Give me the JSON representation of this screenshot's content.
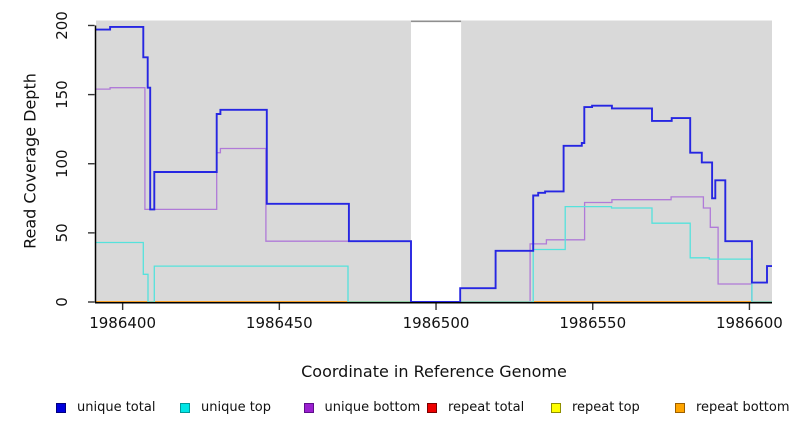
{
  "figure": {
    "panel_bg": "#d9d9d9",
    "axis_color": "#000000",
    "tick_color": "#333333",
    "text_color": "#111111",
    "gap_region": {
      "x_start": 1986492,
      "x_end": 1986508,
      "color": "#ffffff",
      "top_border_color": "#8f8f8f"
    }
  },
  "chart_data": {
    "type": "line",
    "subtype": "step-after-coverage",
    "title": "",
    "xlabel": "Coordinate in Reference Genome",
    "ylabel": "Read Coverage Depth",
    "xlim": [
      1986391.5,
      1986607.2
    ],
    "ylim": [
      0,
      203.6
    ],
    "grid": false,
    "legend_position": "bottom",
    "x_ticks": [
      1986400,
      1986450,
      1986500,
      1986550,
      1986600
    ],
    "x_tick_labels": [
      "1986400",
      "1986450",
      "1986500",
      "1986550",
      "1986600"
    ],
    "y_ticks": [
      0,
      50,
      100,
      150,
      200
    ],
    "y_tick_labels": [
      "0",
      "50",
      "100",
      "150",
      "200"
    ],
    "draw_order": [
      3,
      4,
      5,
      2,
      1,
      0
    ],
    "series": [
      {
        "name": "unique total",
        "color": "#2626e2",
        "legend_color": "#0000dd",
        "legend_border": "#000080",
        "line_width": 1.9,
        "segments": [
          [
            [
              1986391.5,
              197
            ],
            [
              1986396,
              199
            ],
            [
              1986406.6,
              177
            ],
            [
              1986408,
              155
            ],
            [
              1986408.8,
              67
            ],
            [
              1986410.1,
              94
            ],
            [
              1986430,
              136
            ],
            [
              1986431.2,
              139
            ],
            [
              1986446,
              71
            ],
            [
              1986472.2,
              44
            ],
            [
              1986492,
              0
            ],
            [
              1986507.7,
              10
            ],
            [
              1986519,
              37
            ],
            [
              1986531,
              77
            ],
            [
              1986532.6,
              79
            ],
            [
              1986534.8,
              80
            ],
            [
              1986540.7,
              113
            ],
            [
              1986546.5,
              115
            ],
            [
              1986547.3,
              141
            ],
            [
              1986549.8,
              142
            ],
            [
              1986556.1,
              140
            ],
            [
              1986568.9,
              131
            ],
            [
              1986575.2,
              133
            ],
            [
              1986581.1,
              108
            ],
            [
              1986584.8,
              101
            ],
            [
              1986588.1,
              75
            ],
            [
              1986589.1,
              88
            ],
            [
              1986592.3,
              44
            ],
            [
              1986600.8,
              14
            ],
            [
              1986605.6,
              26
            ],
            [
              1986607.2,
              26
            ]
          ]
        ]
      },
      {
        "name": "unique top",
        "color": "#55e2dc",
        "legend_color": "#00e5e5",
        "legend_border": "#009999",
        "line_width": 1.3,
        "segments": [
          [
            [
              1986391.5,
              43
            ],
            [
              1986406.6,
              20
            ],
            [
              1986408.1,
              0
            ],
            [
              1986410.1,
              26
            ],
            [
              1986471.9,
              0
            ],
            [
              1986531,
              38
            ],
            [
              1986541.2,
              69
            ],
            [
              1986556,
              68
            ],
            [
              1986568.9,
              57
            ],
            [
              1986581.1,
              32
            ],
            [
              1986587.2,
              31
            ],
            [
              1986600.8,
              0
            ],
            [
              1986607.2,
              0
            ]
          ]
        ]
      },
      {
        "name": "unique bottom",
        "color": "#b07ad8",
        "legend_color": "#9b20d0",
        "legend_border": "#5e0e8b",
        "line_width": 1.3,
        "segments": [
          [
            [
              1986391.5,
              154
            ],
            [
              1986396,
              155
            ],
            [
              1986407.1,
              67
            ],
            [
              1986430,
              108
            ],
            [
              1986431.2,
              111
            ],
            [
              1986445.7,
              44
            ],
            [
              1986492,
              0
            ],
            [
              1986530,
              42
            ],
            [
              1986535.2,
              45
            ],
            [
              1986547.4,
              72
            ],
            [
              1986556.1,
              74
            ],
            [
              1986575,
              76
            ],
            [
              1986585.3,
              68
            ],
            [
              1986587.5,
              54
            ],
            [
              1986590,
              13
            ],
            [
              1986600.8,
              0
            ],
            [
              1986607.2,
              0
            ]
          ]
        ]
      },
      {
        "name": "repeat total",
        "color": "#e00000",
        "legend_color": "#ee0000",
        "legend_border": "#7a0000",
        "line_width": 1.3,
        "segments": [
          [
            [
              1986391.5,
              0
            ],
            [
              1986492,
              0
            ]
          ],
          [
            [
              1986508,
              0
            ],
            [
              1986607.2,
              0
            ]
          ]
        ]
      },
      {
        "name": "repeat top",
        "color": "#f2f200",
        "legend_color": "#ffff00",
        "legend_border": "#8f8f00",
        "line_width": 1.3,
        "segments": [
          [
            [
              1986391.5,
              0
            ],
            [
              1986492,
              0
            ]
          ],
          [
            [
              1986508,
              0
            ],
            [
              1986607.2,
              0
            ]
          ]
        ]
      },
      {
        "name": "repeat bottom",
        "color": "#ff9808",
        "legend_color": "#ffa500",
        "legend_border": "#9c5f00",
        "line_width": 1.6,
        "segments": [
          [
            [
              1986391.5,
              0
            ],
            [
              1986492,
              0
            ]
          ],
          [
            [
              1986508,
              0
            ],
            [
              1986607.2,
              0
            ]
          ]
        ]
      }
    ]
  }
}
